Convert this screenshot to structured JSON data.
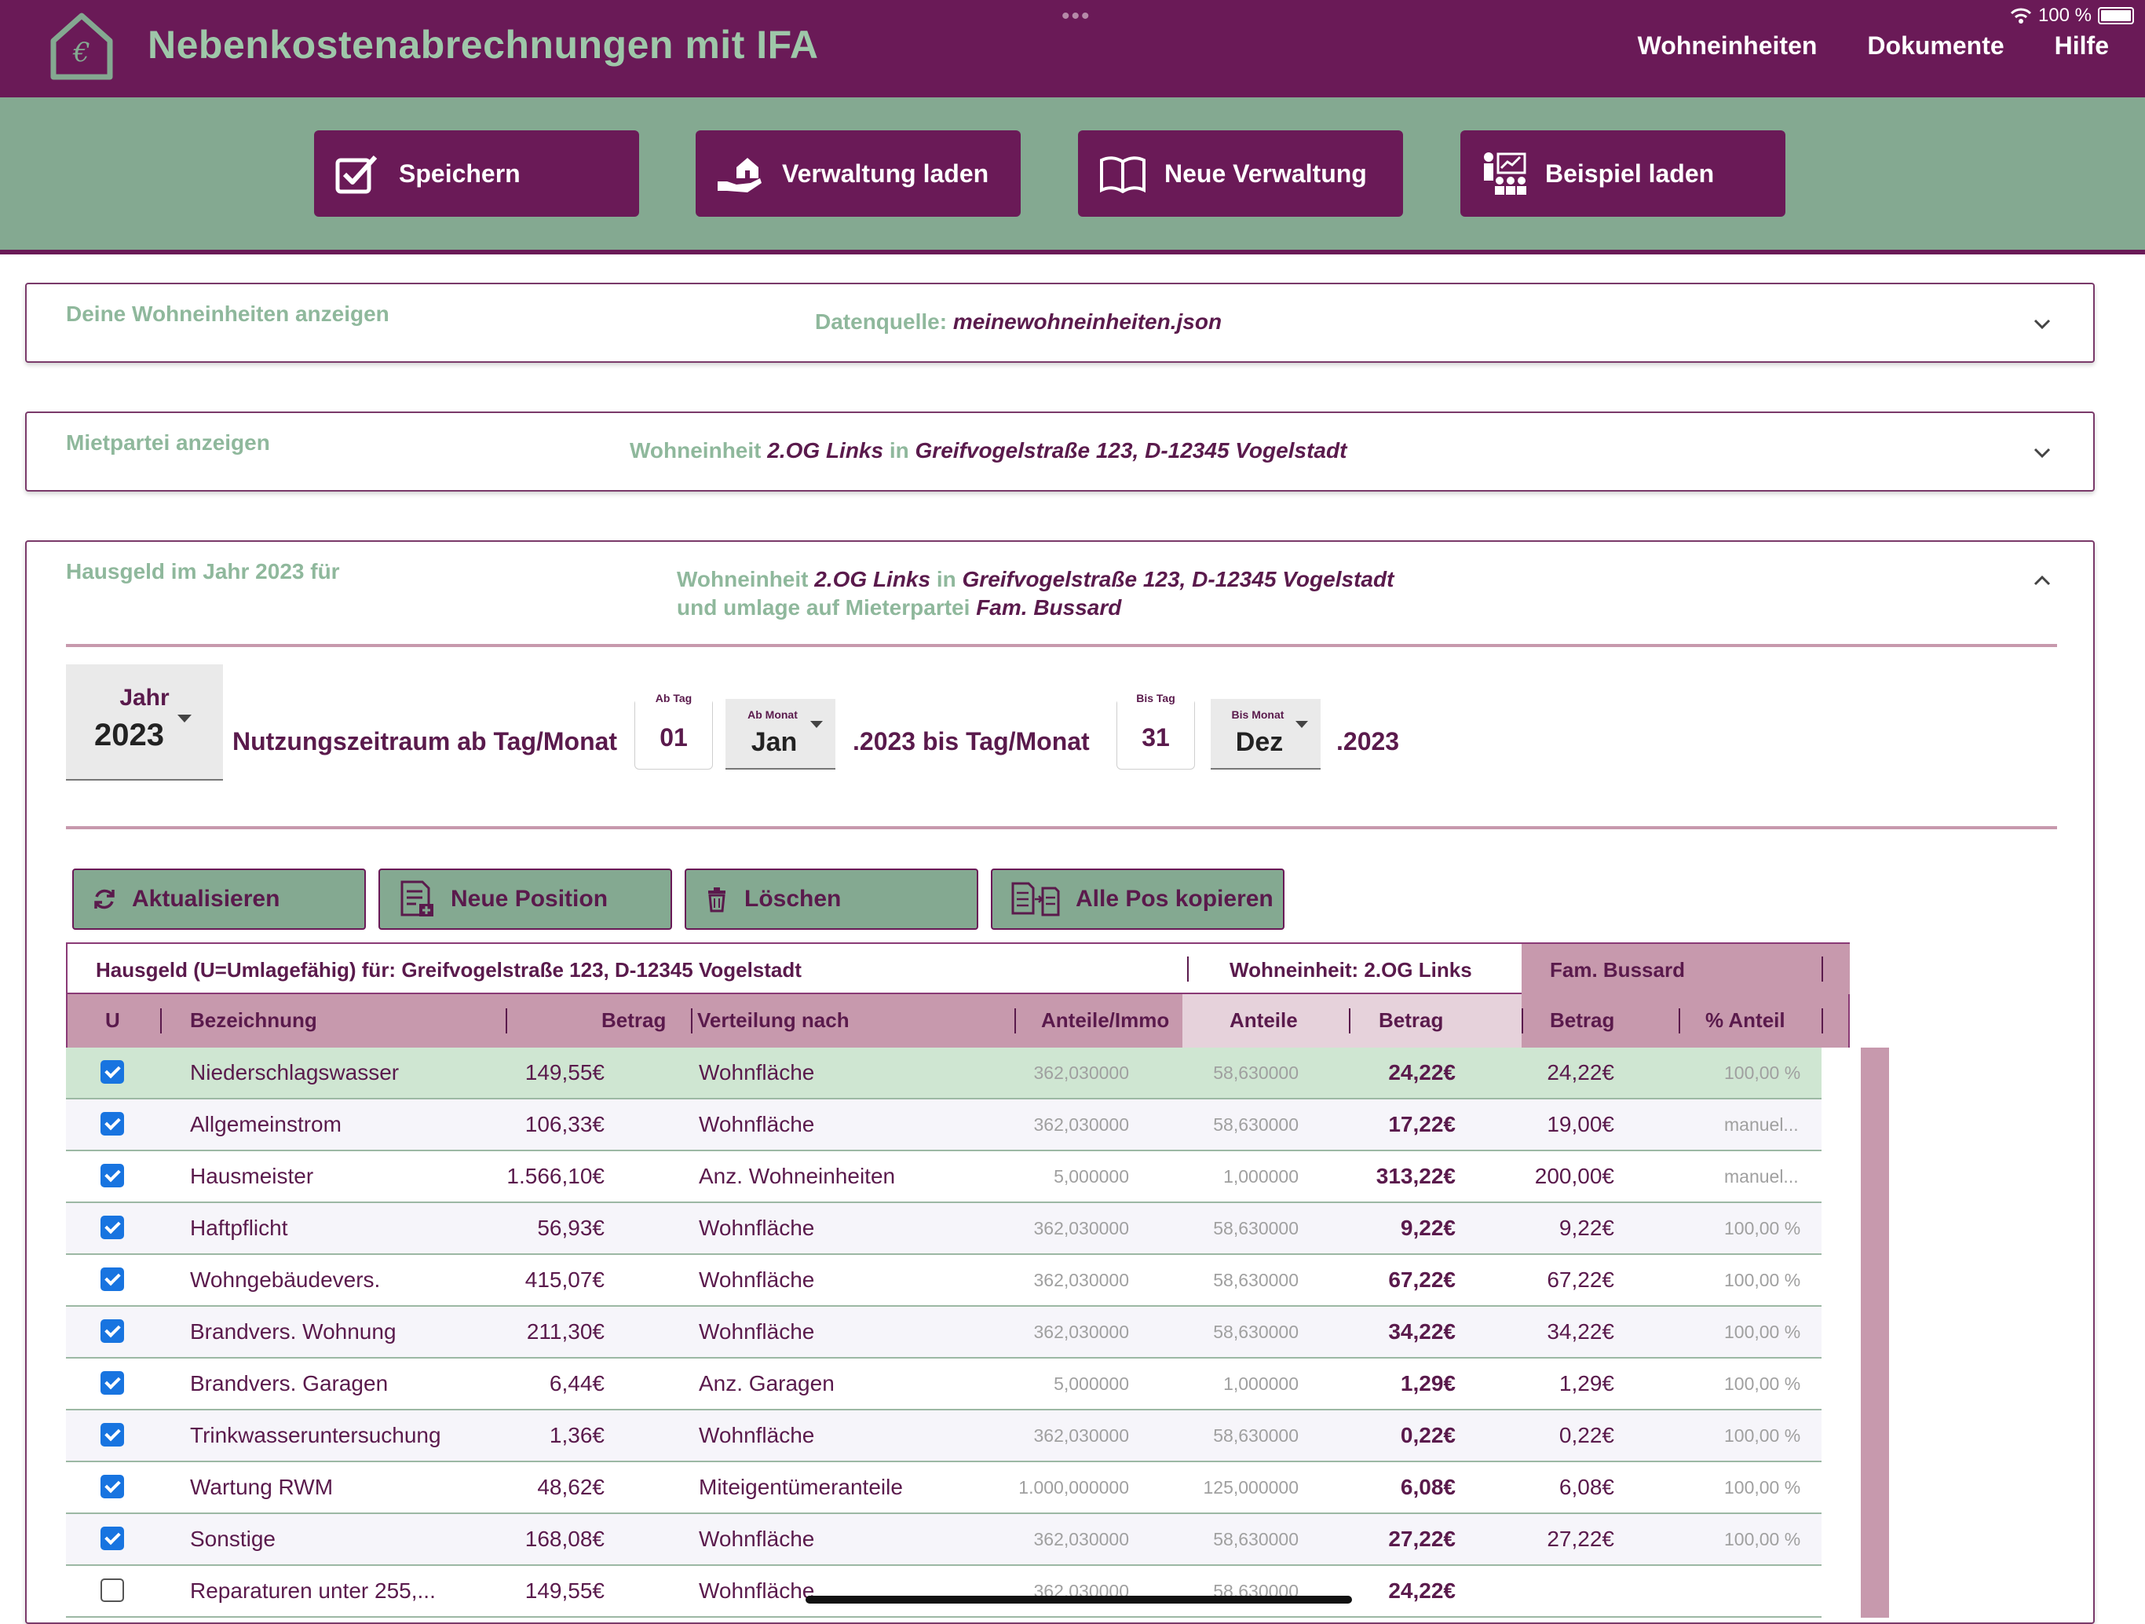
{
  "header": {
    "title": "Nebenkostenabrechnungen mit IFA",
    "status": {
      "battery": "100 %"
    },
    "nav": [
      "Wohneinheiten",
      "Dokumente",
      "Hilfe"
    ]
  },
  "toolbar": {
    "buttons": [
      {
        "label": "Speichern",
        "icon": "checkbox-icon"
      },
      {
        "label": "Verwaltung laden",
        "icon": "house-hand-icon"
      },
      {
        "label": "Neue Verwaltung",
        "icon": "book-icon"
      },
      {
        "label": "Beispiel laden",
        "icon": "presentation-icon"
      }
    ]
  },
  "panels": {
    "units": {
      "label": "Deine Wohneinheiten anzeigen",
      "source_label": "Datenquelle:",
      "source_file": "meinewohneinheiten.json"
    },
    "tenant": {
      "label": "Mietpartei anzeigen",
      "prefix": "Wohneinheit",
      "unit": "2.OG Links",
      "in": "in",
      "address": "Greifvogelstraße 123, D-12345 Vogelstadt"
    },
    "hausgeld": {
      "label": "Hausgeld im Jahr 2023 für",
      "prefix": "Wohneinheit",
      "unit": "2.OG Links",
      "in": "in",
      "address": "Greifvogelstraße 123, D-12345 Vogelstadt",
      "line2_prefix": "und umlage auf Mieterpartei",
      "tenant": "Fam. Bussard"
    }
  },
  "period": {
    "year_label": "Jahr",
    "year": "2023",
    "usage_label": "Nutzungszeitraum ab Tag/Monat",
    "from_day_label": "Ab Tag",
    "from_day": "01",
    "from_month_label": "Ab Monat",
    "from_month": "Jan",
    "middle": ".2023 bis Tag/Monat",
    "to_day_label": "Bis Tag",
    "to_day": "31",
    "to_month_label": "Bis Monat",
    "to_month": "Dez",
    "end": ".2023"
  },
  "actions": [
    {
      "label": "Aktualisieren",
      "icon": "refresh-icon"
    },
    {
      "label": "Neue Position",
      "icon": "new-document-icon"
    },
    {
      "label": "Löschen",
      "icon": "trash-icon"
    },
    {
      "label": "Alle Pos kopieren",
      "icon": "copy-documents-icon"
    }
  ],
  "table": {
    "caption": "Hausgeld (U=Umlagefähig) für: Greifvogelstraße 123, D-12345 Vogelstadt",
    "unit_header": "Wohneinheit: 2.OG Links",
    "tenant_header": "Fam. Bussard",
    "columns": [
      "U",
      "Bezeichnung",
      "Betrag",
      "Verteilung nach",
      "Anteile/Immo",
      "Anteile",
      "Betrag",
      "Betrag",
      "% Anteil"
    ],
    "rows": [
      {
        "checked": true,
        "name": "Niederschlagswasser",
        "amount": "149,55€",
        "dist": "Wohnfläche",
        "shares_total": "362,030000",
        "shares": "58,630000",
        "unit_amount": "24,22€",
        "tenant_amount": "24,22€",
        "pct": "100,00 %"
      },
      {
        "checked": true,
        "name": "Allgemeinstrom",
        "amount": "106,33€",
        "dist": "Wohnfläche",
        "shares_total": "362,030000",
        "shares": "58,630000",
        "unit_amount": "17,22€",
        "tenant_amount": "19,00€",
        "pct": "manuel..."
      },
      {
        "checked": true,
        "name": "Hausmeister",
        "amount": "1.566,10€",
        "dist": "Anz. Wohneinheiten",
        "shares_total": "5,000000",
        "shares": "1,000000",
        "unit_amount": "313,22€",
        "tenant_amount": "200,00€",
        "pct": "manuel..."
      },
      {
        "checked": true,
        "name": "Haftpflicht",
        "amount": "56,93€",
        "dist": "Wohnfläche",
        "shares_total": "362,030000",
        "shares": "58,630000",
        "unit_amount": "9,22€",
        "tenant_amount": "9,22€",
        "pct": "100,00 %"
      },
      {
        "checked": true,
        "name": "Wohngebäudevers.",
        "amount": "415,07€",
        "dist": "Wohnfläche",
        "shares_total": "362,030000",
        "shares": "58,630000",
        "unit_amount": "67,22€",
        "tenant_amount": "67,22€",
        "pct": "100,00 %"
      },
      {
        "checked": true,
        "name": "Brandvers. Wohnung",
        "amount": "211,30€",
        "dist": "Wohnfläche",
        "shares_total": "362,030000",
        "shares": "58,630000",
        "unit_amount": "34,22€",
        "tenant_amount": "34,22€",
        "pct": "100,00 %"
      },
      {
        "checked": true,
        "name": "Brandvers. Garagen",
        "amount": "6,44€",
        "dist": "Anz. Garagen",
        "shares_total": "5,000000",
        "shares": "1,000000",
        "unit_amount": "1,29€",
        "tenant_amount": "1,29€",
        "pct": "100,00 %"
      },
      {
        "checked": true,
        "name": "Trinkwasseruntersuchung",
        "amount": "1,36€",
        "dist": "Wohnfläche",
        "shares_total": "362,030000",
        "shares": "58,630000",
        "unit_amount": "0,22€",
        "tenant_amount": "0,22€",
        "pct": "100,00 %"
      },
      {
        "checked": true,
        "name": "Wartung RWM",
        "amount": "48,62€",
        "dist": "Miteigentümeranteile",
        "shares_total": "1.000,000000",
        "shares": "125,000000",
        "unit_amount": "6,08€",
        "tenant_amount": "6,08€",
        "pct": "100,00 %"
      },
      {
        "checked": true,
        "name": "Sonstige",
        "amount": "168,08€",
        "dist": "Wohnfläche",
        "shares_total": "362,030000",
        "shares": "58,630000",
        "unit_amount": "27,22€",
        "tenant_amount": "27,22€",
        "pct": "100,00 %"
      },
      {
        "checked": false,
        "name": "Reparaturen unter 255,...",
        "amount": "149,55€",
        "dist": "Wohnfläche",
        "shares_total": "362,030000",
        "shares": "58,630000",
        "unit_amount": "24,22€",
        "tenant_amount": "",
        "pct": ""
      }
    ]
  },
  "colors": {
    "primary": "#6a1a57",
    "secondary": "#84a991",
    "accent": "#c799ad",
    "highlight_row": "#cfe6d2",
    "checkbox": "#1874e0"
  }
}
